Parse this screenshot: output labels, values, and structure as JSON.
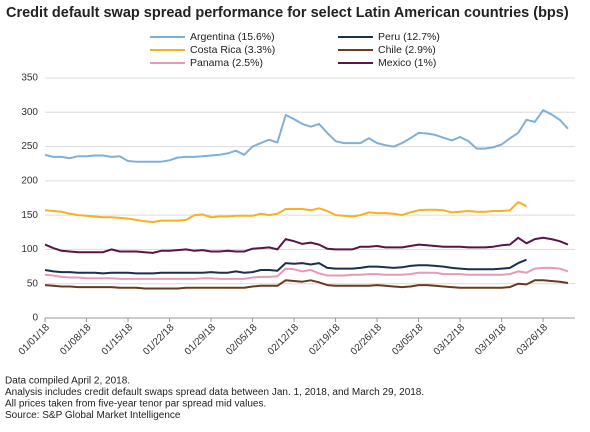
{
  "chart_data": {
    "type": "line",
    "title": "Credit default swap spread performance for select Latin American countries (bps)",
    "categories": [
      "01/01/18",
      null,
      null,
      null,
      null,
      "01/08/18",
      null,
      null,
      null,
      null,
      "01/15/18",
      null,
      null,
      null,
      null,
      "01/22/18",
      null,
      null,
      null,
      null,
      "01/29/18",
      null,
      null,
      null,
      null,
      "02/05/18",
      null,
      null,
      null,
      null,
      "02/12/18",
      null,
      null,
      null,
      null,
      "02/19/18",
      null,
      null,
      null,
      null,
      "02/26/18",
      null,
      null,
      null,
      null,
      "03/05/18",
      null,
      null,
      null,
      null,
      "03/12/18",
      null,
      null,
      null,
      null,
      "03/19/18",
      null,
      null,
      null,
      null,
      "03/26/18",
      null,
      null,
      null
    ],
    "series": [
      {
        "name": "Argentina (15.6%)",
        "color": "#7fb0d8",
        "values": [
          238,
          235,
          235,
          233,
          236,
          236,
          237,
          237,
          235,
          236,
          229,
          228,
          228,
          228,
          228,
          230,
          234,
          235,
          235,
          236,
          237,
          238,
          240,
          244,
          238,
          250,
          255,
          260,
          256,
          296,
          290,
          283,
          279,
          283,
          270,
          258,
          255,
          255,
          255,
          262,
          255,
          252,
          250,
          255,
          262,
          270,
          269,
          267,
          263,
          259,
          264,
          258,
          247,
          247,
          249,
          253,
          262,
          270,
          289,
          286,
          303,
          297,
          289,
          276
        ]
      },
      {
        "name": "Peru (12.7%)",
        "color": "#1b2f4e",
        "values": [
          70,
          68,
          67,
          67,
          66,
          66,
          66,
          65,
          66,
          66,
          66,
          65,
          65,
          65,
          66,
          66,
          66,
          66,
          66,
          66,
          67,
          66,
          66,
          68,
          66,
          67,
          70,
          70,
          69,
          80,
          79,
          80,
          78,
          80,
          73,
          72,
          72,
          72,
          73,
          75,
          75,
          74,
          73,
          74,
          76,
          77,
          77,
          76,
          75,
          73,
          72,
          71,
          71,
          71,
          71,
          72,
          73,
          80,
          85,
          null,
          null,
          null,
          null,
          null
        ]
      },
      {
        "name": "Costa Rica (3.3%)",
        "color": "#f5b120",
        "values": [
          157,
          156,
          155,
          152,
          150,
          149,
          148,
          147,
          147,
          146,
          145,
          143,
          141,
          140,
          142,
          142,
          142,
          143,
          150,
          151,
          147,
          148,
          148,
          149,
          149,
          149,
          152,
          150,
          152,
          159,
          159,
          159,
          157,
          160,
          156,
          150,
          149,
          148,
          150,
          154,
          153,
          153,
          152,
          150,
          154,
          157,
          158,
          158,
          157,
          154,
          155,
          156,
          155,
          155,
          156,
          156,
          157,
          169,
          163,
          null,
          null,
          null,
          null,
          null
        ]
      },
      {
        "name": "Chile (2.9%)",
        "color": "#6b3a1e",
        "values": [
          48,
          47,
          46,
          46,
          45,
          45,
          45,
          45,
          45,
          44,
          44,
          44,
          43,
          43,
          43,
          43,
          43,
          44,
          44,
          44,
          44,
          44,
          44,
          44,
          44,
          46,
          47,
          47,
          47,
          55,
          54,
          53,
          55,
          52,
          48,
          47,
          47,
          47,
          47,
          47,
          48,
          47,
          46,
          45,
          46,
          48,
          48,
          47,
          46,
          45,
          44,
          44,
          44,
          44,
          44,
          44,
          45,
          50,
          49,
          55,
          55,
          54,
          53,
          51
        ]
      },
      {
        "name": "Panama (2.5%)",
        "color": "#e899b8",
        "values": [
          63,
          62,
          60,
          59,
          59,
          58,
          58,
          58,
          58,
          57,
          57,
          57,
          57,
          57,
          57,
          57,
          57,
          57,
          57,
          58,
          58,
          57,
          57,
          57,
          57,
          59,
          60,
          60,
          61,
          72,
          71,
          68,
          70,
          65,
          62,
          62,
          62,
          63,
          63,
          64,
          64,
          63,
          63,
          63,
          64,
          66,
          66,
          66,
          64,
          64,
          64,
          63,
          63,
          63,
          63,
          63,
          64,
          68,
          66,
          72,
          73,
          73,
          72,
          68
        ]
      },
      {
        "name": "Mexico (1%)",
        "color": "#5a1448",
        "values": [
          107,
          102,
          98,
          97,
          96,
          96,
          96,
          96,
          100,
          97,
          97,
          97,
          96,
          95,
          98,
          98,
          99,
          100,
          98,
          99,
          97,
          97,
          98,
          97,
          97,
          101,
          102,
          103,
          100,
          115,
          112,
          108,
          110,
          107,
          101,
          100,
          100,
          100,
          104,
          104,
          105,
          103,
          103,
          103,
          105,
          107,
          106,
          105,
          104,
          104,
          104,
          103,
          103,
          103,
          104,
          106,
          107,
          117,
          109,
          115,
          117,
          115,
          112,
          107
        ]
      }
    ],
    "ylim": [
      0,
      350
    ],
    "yticks": [
      0,
      50,
      100,
      150,
      200,
      250,
      300,
      350
    ],
    "grid": true,
    "notes": [
      "Data compiled April 2, 2018.",
      "Analysis includes credit default swaps spread data between Jan. 1, 2018, and March 29, 2018.",
      "All prices taken from five-year tenor par spread mid values.",
      "Source: S&P Global Market Intelligence"
    ]
  }
}
